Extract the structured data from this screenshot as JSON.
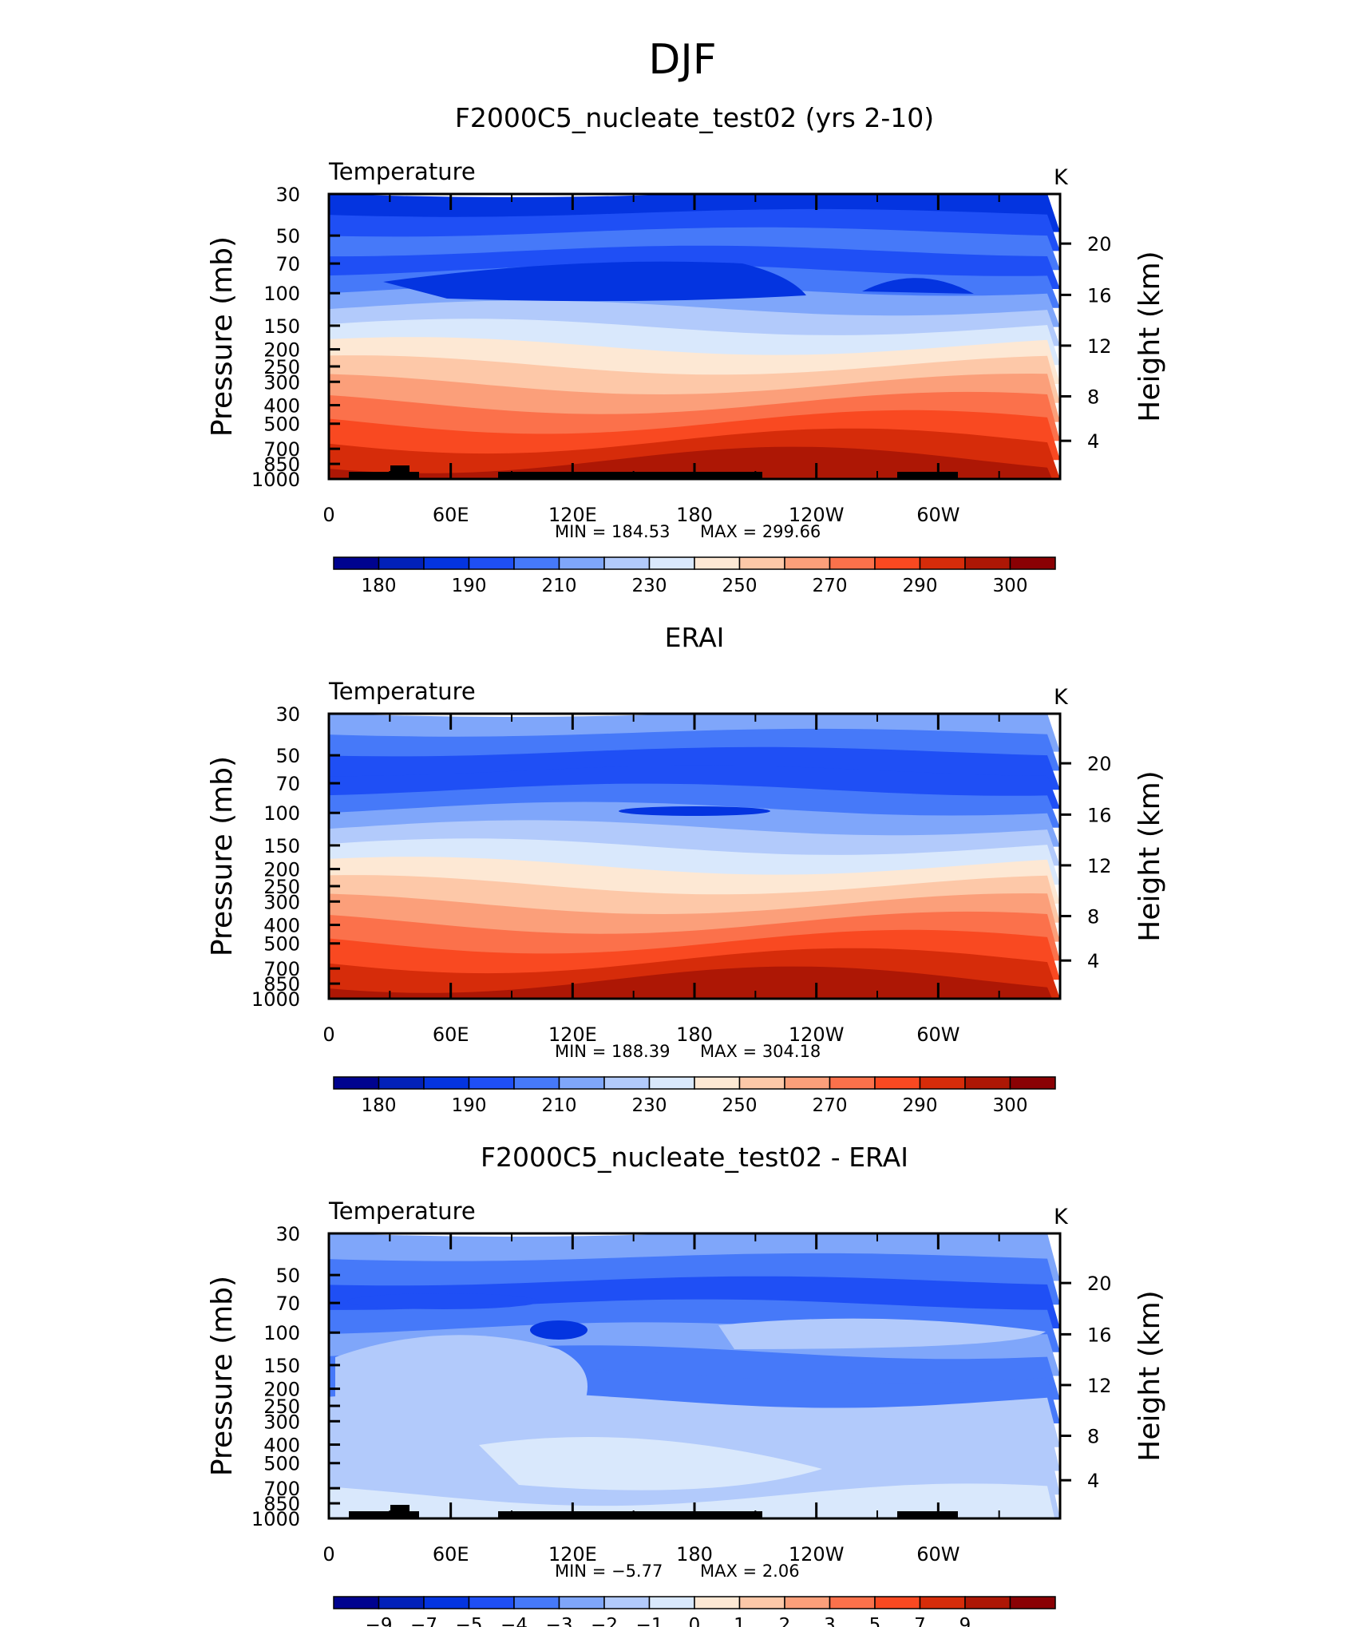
{
  "figure": {
    "title": "DJF"
  },
  "chart_data": [
    {
      "type": "contour",
      "title": "F2000C5_nucleate_test02 (yrs 2-10)",
      "variable": "Temperature",
      "units": "K",
      "ylabel": "Pressure (mb)",
      "ylabel_right": "Height (km)",
      "x_ticks": [
        "0",
        "60E",
        "120E",
        "180",
        "120W",
        "60W"
      ],
      "y_ticks": [
        "30",
        "50",
        "70",
        "100",
        "150",
        "200",
        "250",
        "300",
        "400",
        "500",
        "700",
        "850",
        "1000"
      ],
      "y_ticks_right": [
        "20",
        "16",
        "12",
        "8",
        "4"
      ],
      "min_label": "MIN  =  184.53",
      "max_label": "MAX  =  299.66",
      "colorbar_labels": [
        "180",
        "190",
        "210",
        "230",
        "250",
        "270",
        "290",
        "300"
      ],
      "bands": [
        2,
        3,
        4,
        3,
        4,
        5,
        6,
        7,
        8,
        9,
        10,
        11,
        12,
        13,
        14
      ]
    },
    {
      "type": "contour",
      "title": "ERAI",
      "variable": "Temperature",
      "units": "K",
      "ylabel": "Pressure (mb)",
      "ylabel_right": "Height (km)",
      "x_ticks": [
        "0",
        "60E",
        "120E",
        "180",
        "120W",
        "60W"
      ],
      "y_ticks": [
        "30",
        "50",
        "70",
        "100",
        "150",
        "200",
        "250",
        "300",
        "400",
        "500",
        "700",
        "850",
        "1000"
      ],
      "y_ticks_right": [
        "20",
        "16",
        "12",
        "8",
        "4"
      ],
      "min_label": "MIN  =  188.39",
      "max_label": "MAX  =  304.18",
      "colorbar_labels": [
        "180",
        "190",
        "210",
        "230",
        "250",
        "270",
        "290",
        "300"
      ],
      "bands": [
        5,
        4,
        3,
        3,
        4,
        5,
        6,
        7,
        8,
        9,
        10,
        11,
        12,
        13,
        14
      ]
    },
    {
      "type": "contour",
      "title": "F2000C5_nucleate_test02 - ERAI",
      "variable": "Temperature",
      "units": "K",
      "ylabel": "Pressure (mb)",
      "ylabel_right": "Height (km)",
      "x_ticks": [
        "0",
        "60E",
        "120E",
        "180",
        "120W",
        "60W"
      ],
      "y_ticks": [
        "30",
        "50",
        "70",
        "100",
        "150",
        "200",
        "250",
        "300",
        "400",
        "500",
        "700",
        "850",
        "1000"
      ],
      "y_ticks_right": [
        "20",
        "16",
        "12",
        "8",
        "4"
      ],
      "min_label": "MIN  =   −5.77",
      "max_label": "MAX  =     2.06",
      "colorbar_labels": [
        "−9",
        "−7",
        "−5",
        "−4",
        "−3",
        "−2",
        "−1",
        "0",
        "1",
        "2",
        "3",
        "5",
        "7",
        "9"
      ],
      "bands": [
        5,
        4,
        3,
        4,
        5,
        4,
        4,
        6,
        6,
        6,
        6,
        7
      ]
    }
  ],
  "colors": {
    "palette": [
      "#00038f",
      "#0221b9",
      "#0434e0",
      "#1f4ff5",
      "#4679f9",
      "#7fa6fa",
      "#b2cafb",
      "#d9e8fc",
      "#fde8d4",
      "#fdc8a8",
      "#fb9f7a",
      "#fb714b",
      "#f94921",
      "#d62c0a",
      "#ad1705",
      "#8a0104"
    ],
    "topography": "#000000"
  }
}
